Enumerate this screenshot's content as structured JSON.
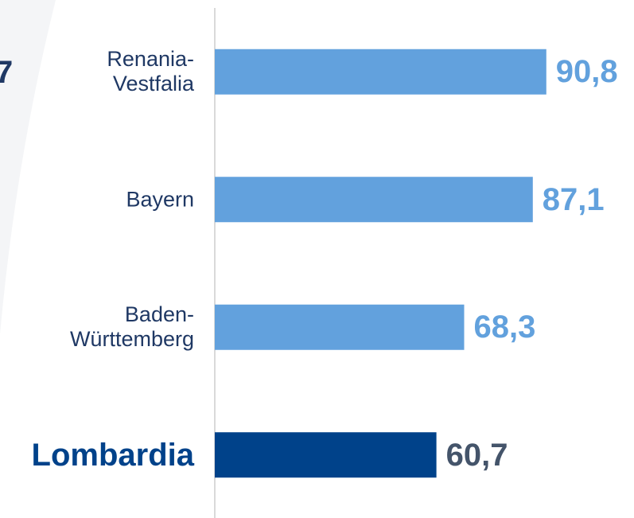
{
  "chart_data": {
    "type": "bar",
    "orientation": "horizontal",
    "annotation": "7",
    "categories": [
      "Renania-\nVestfalia",
      "Bayern",
      "Baden-\nWürttemberg",
      "Lombardia"
    ],
    "values": [
      90.8,
      87.1,
      68.3,
      60.7
    ],
    "value_labels": [
      "90,8",
      "87,1",
      "68,3",
      "60,7"
    ],
    "colors": [
      "#62a1dd",
      "#62a1dd",
      "#62a1dd",
      "#00428a"
    ],
    "value_label_colors": [
      "#62a1dd",
      "#62a1dd",
      "#62a1dd",
      "#44546a"
    ],
    "category_label_colors": [
      "#1f3864",
      "#1f3864",
      "#1f3864",
      "#00428a"
    ],
    "category_label_weights": [
      "normal",
      "normal",
      "normal",
      "bold"
    ],
    "xlim": [
      0,
      100
    ]
  }
}
